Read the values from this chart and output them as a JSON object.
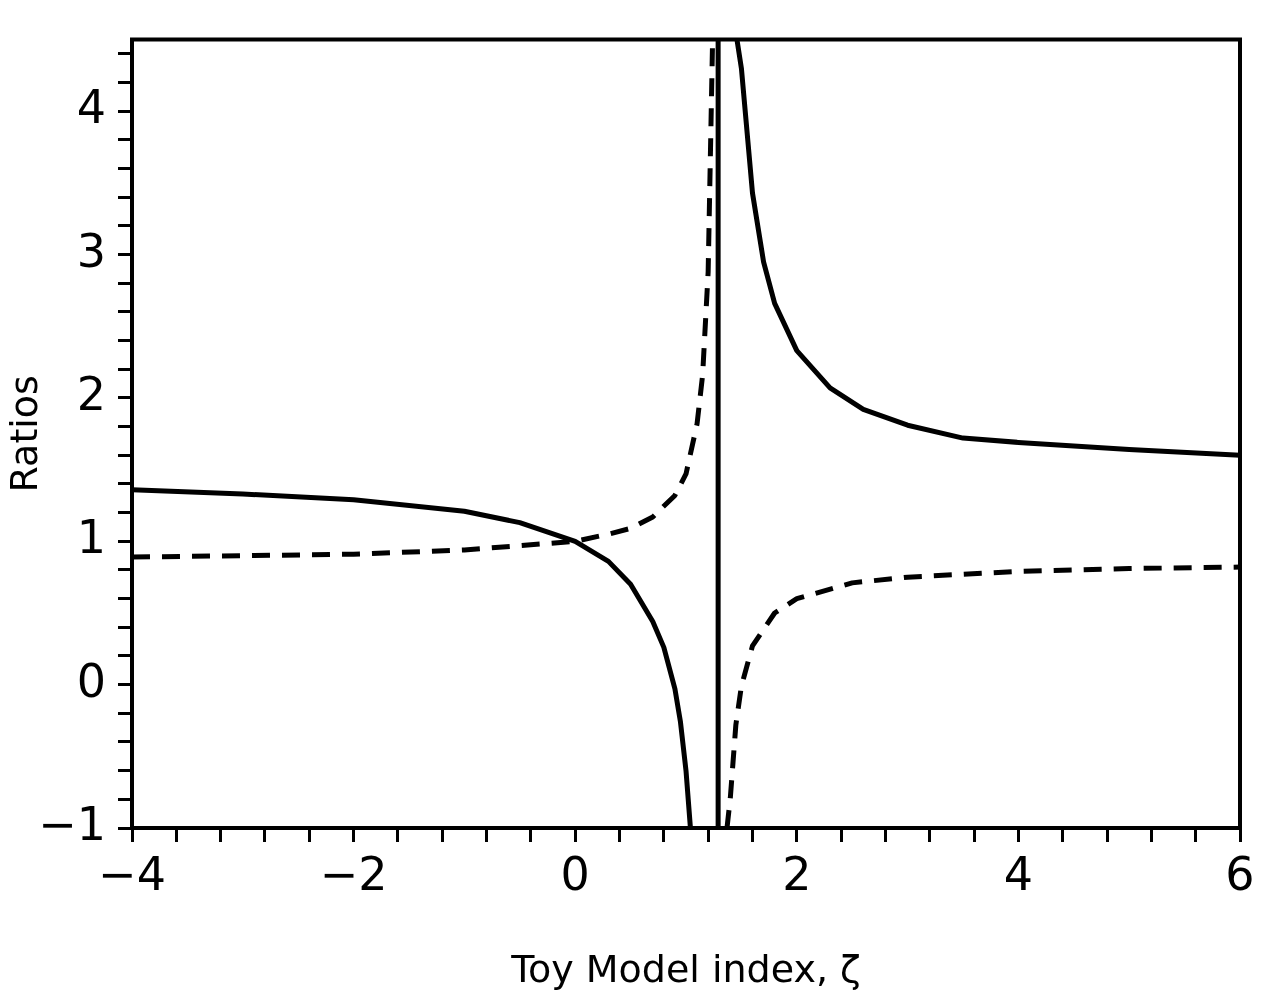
{
  "chart_data": {
    "type": "line",
    "xlabel": "Toy Model index, ζ",
    "ylabel": "Ratios",
    "xlim": [
      -4,
      6
    ],
    "ylim": [
      -1,
      4.5
    ],
    "xticks": [
      {
        "value": -4,
        "label": "−4"
      },
      {
        "value": -3.6,
        "label": null
      },
      {
        "value": -3.2,
        "label": null
      },
      {
        "value": -2.8,
        "label": null
      },
      {
        "value": -2.4,
        "label": null
      },
      {
        "value": -2,
        "label": "−2"
      },
      {
        "value": -1.6,
        "label": null
      },
      {
        "value": -1.2,
        "label": null
      },
      {
        "value": -0.8,
        "label": null
      },
      {
        "value": -0.4,
        "label": null
      },
      0,
      {
        "value": 0.4,
        "label": null
      },
      {
        "value": 0.8,
        "label": null
      },
      {
        "value": 1.2,
        "label": null
      },
      {
        "value": 1.6,
        "label": null
      },
      2,
      {
        "value": 2.4,
        "label": null
      },
      {
        "value": 2.8,
        "label": null
      },
      {
        "value": 3.2,
        "label": null
      },
      {
        "value": 3.6,
        "label": null
      },
      4,
      {
        "value": 4.4,
        "label": null
      },
      {
        "value": 4.8,
        "label": null
      },
      {
        "value": 5.2,
        "label": null
      },
      {
        "value": 5.6,
        "label": null
      },
      6
    ],
    "yticks": [
      {
        "value": -1,
        "label": "−1"
      },
      {
        "value": -0.8,
        "label": null
      },
      {
        "value": -0.6,
        "label": null
      },
      {
        "value": -0.4,
        "label": null
      },
      {
        "value": -0.2,
        "label": null
      },
      0,
      {
        "value": 0.2,
        "label": null
      },
      {
        "value": 0.4,
        "label": null
      },
      {
        "value": 0.6,
        "label": null
      },
      {
        "value": 0.8,
        "label": null
      },
      1,
      {
        "value": 1.2,
        "label": null
      },
      {
        "value": 1.4,
        "label": null
      },
      {
        "value": 1.6,
        "label": null
      },
      {
        "value": 1.8,
        "label": null
      },
      2,
      {
        "value": 2.2,
        "label": null
      },
      {
        "value": 2.4,
        "label": null
      },
      {
        "value": 2.6,
        "label": null
      },
      {
        "value": 2.8,
        "label": null
      },
      3,
      {
        "value": 3.2,
        "label": null
      },
      {
        "value": 3.4,
        "label": null
      },
      {
        "value": 3.6,
        "label": null
      },
      {
        "value": 3.8,
        "label": null
      },
      4,
      {
        "value": 4.2,
        "label": null
      },
      {
        "value": 4.4,
        "label": null
      }
    ],
    "grid": false,
    "legend": false,
    "marker": "none",
    "ref_lines": [
      {
        "axis": "x",
        "value": 1.29,
        "color": "#000000",
        "line_style": "solid"
      }
    ],
    "series": [
      {
        "color": "#000000",
        "line_style": "solid",
        "x": [
          -4,
          -3,
          -2,
          -1,
          -0.5,
          0,
          0.3,
          0.5,
          0.7,
          0.8,
          0.9,
          0.95,
          1.0,
          1.04,
          1.29,
          1.46,
          1.5,
          1.6,
          1.7,
          1.8,
          2.0,
          2.3,
          2.6,
          3,
          3.5,
          4,
          5,
          6
        ],
        "values": [
          1.36,
          1.33,
          1.29,
          1.21,
          1.13,
          1.0,
          0.86,
          0.7,
          0.44,
          0.26,
          -0.03,
          -0.26,
          -0.6,
          -1.0,
          null,
          4.5,
          4.3,
          3.43,
          2.95,
          2.66,
          2.33,
          2.07,
          1.92,
          1.81,
          1.72,
          1.69,
          1.64,
          1.6
        ]
      },
      {
        "color": "#000000",
        "line_style": "dashed",
        "x": [
          -4,
          -2,
          -1,
          0,
          0.3,
          0.5,
          0.7,
          0.9,
          1.0,
          1.1,
          1.15,
          1.2,
          1.24,
          1.29,
          1.37,
          1.4,
          1.45,
          1.5,
          1.6,
          1.8,
          2,
          2.5,
          3,
          4,
          5,
          6
        ],
        "values": [
          0.89,
          0.91,
          0.94,
          1.0,
          1.05,
          1.09,
          1.17,
          1.32,
          1.47,
          1.82,
          2.16,
          2.88,
          4.5,
          null,
          -1.0,
          -0.79,
          -0.28,
          -0.01,
          0.27,
          0.5,
          0.6,
          0.71,
          0.75,
          0.79,
          0.81,
          0.82
        ]
      }
    ]
  }
}
